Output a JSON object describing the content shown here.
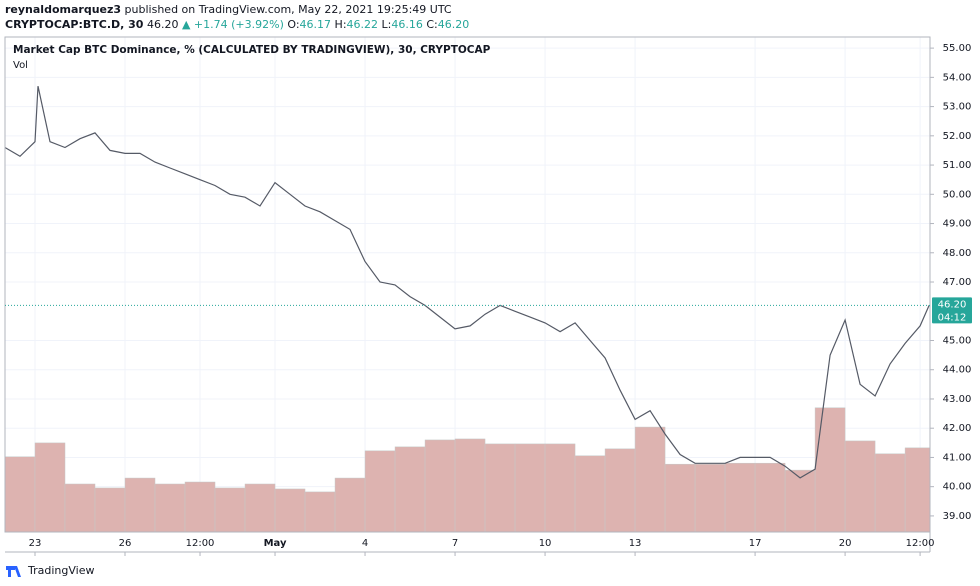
{
  "header": {
    "publisher": "reynaldomarquez3",
    "published": " published on TradingView.com, May 22, 2021 19:25:49 UTC",
    "symbol": "CRYPTOCAP:BTC.D, 30",
    "price": "46.20",
    "change": "▲ +1.74 (+3.92%)",
    "o_label": "O:",
    "o": "46.17",
    "h_label": "H:",
    "h": "46.22",
    "l_label": "L:",
    "l": "46.16",
    "c_label": "C:",
    "c": "46.20"
  },
  "footer": {
    "brand": "TradingView"
  },
  "chart_data": {
    "type": "line",
    "title": "Market Cap BTC Dominance, % (CALCULATED BY TRADINGVIEW), 30, CRYPTOCAP",
    "subtitle": "Vol",
    "series": [
      {
        "name": "BTC.D",
        "color": "#555a66",
        "x": [
          -1,
          -0.5,
          0,
          0.1,
          0.5,
          1,
          1.5,
          2,
          2.5,
          3,
          3.5,
          4,
          4.5,
          5,
          5.5,
          6,
          6.5,
          7,
          7.5,
          8,
          8.5,
          9,
          9.5,
          10,
          10.5,
          11,
          11.5,
          12,
          12.5,
          13,
          13.5,
          14,
          14.5,
          15,
          15.5,
          16,
          16.5,
          17,
          17.5,
          18,
          18.5,
          19,
          19.5,
          20,
          20.5,
          21,
          21.5,
          22,
          22.5,
          23,
          23.5,
          24,
          24.5,
          25,
          25.5,
          26,
          26.5,
          27,
          27.5,
          28,
          28.5,
          29,
          29.5,
          29.8
        ],
        "values": [
          51.6,
          51.3,
          51.8,
          53.7,
          51.8,
          51.6,
          51.9,
          52.1,
          51.5,
          51.4,
          51.4,
          51.1,
          50.9,
          50.7,
          50.5,
          50.3,
          50.0,
          49.9,
          49.6,
          50.4,
          50.0,
          49.6,
          49.4,
          49.1,
          48.8,
          47.7,
          47.0,
          46.9,
          46.5,
          46.2,
          45.8,
          45.4,
          45.5,
          45.9,
          46.2,
          46.0,
          45.8,
          45.6,
          45.3,
          45.6,
          45.0,
          44.4,
          43.3,
          42.3,
          42.6,
          41.8,
          41.1,
          40.8,
          40.8,
          40.8,
          41.0,
          41.0,
          41.0,
          40.7,
          40.3,
          40.6,
          44.5,
          45.7,
          43.5,
          43.1,
          44.2,
          44.9,
          45.5,
          46.2
        ]
      }
    ],
    "volume": {
      "name": "Vol",
      "color": "#ddb3b0",
      "x": [
        -1,
        0,
        1,
        2,
        3,
        4,
        5,
        6,
        7,
        8,
        9,
        10,
        11,
        12,
        13,
        14,
        15,
        16,
        17,
        18,
        19,
        20,
        21,
        22,
        23,
        24,
        25,
        26,
        27,
        28,
        29
      ],
      "values": [
        15.2,
        18,
        9.7,
        8.9,
        10.9,
        9.7,
        10.1,
        8.9,
        9.7,
        8.7,
        8.1,
        10.9,
        16.4,
        17.2,
        18.6,
        18.8,
        17.8,
        17.8,
        17.8,
        15.4,
        16.8,
        21.2,
        13.7,
        13.7,
        13.9,
        13.9,
        12.5,
        25.1,
        18.4,
        15.8,
        17
      ],
      "vlim": [
        0,
        100
      ]
    },
    "last_price": {
      "value": 46.2,
      "label": "46.20"
    },
    "countdown": "04:12",
    "last_color": "#26a69a",
    "xlim": [
      -1,
      29.83
    ],
    "xticks": [
      {
        "value": 0,
        "label": "23"
      },
      {
        "value": 3,
        "label": "26"
      },
      {
        "value": 5.5,
        "label": "12:00"
      },
      {
        "value": 8,
        "label": "May"
      },
      {
        "value": 11,
        "label": "4"
      },
      {
        "value": 14,
        "label": "7"
      },
      {
        "value": 17,
        "label": "10"
      },
      {
        "value": 20,
        "label": "13"
      },
      {
        "value": 24,
        "label": "17"
      },
      {
        "value": 27,
        "label": "20"
      },
      {
        "value": 29.5,
        "label": "12:00"
      }
    ],
    "ylim": [
      38.45,
      55.38
    ],
    "yticks": [
      {
        "value": 39,
        "label": "39.00"
      },
      {
        "value": 40,
        "label": "40.00"
      },
      {
        "value": 41,
        "label": "41.00"
      },
      {
        "value": 42,
        "label": "42.00"
      },
      {
        "value": 43,
        "label": "43.00"
      },
      {
        "value": 44,
        "label": "44.00"
      },
      {
        "value": 45,
        "label": "45.00"
      },
      {
        "value": 47,
        "label": "47.00"
      },
      {
        "value": 48,
        "label": "48.00"
      },
      {
        "value": 49,
        "label": "49.00"
      },
      {
        "value": 50,
        "label": "50.00"
      },
      {
        "value": 51,
        "label": "51.00"
      },
      {
        "value": 52,
        "label": "52.00"
      },
      {
        "value": 53,
        "label": "53.00"
      },
      {
        "value": 54,
        "label": "54.00"
      },
      {
        "value": 55,
        "label": "55.00"
      }
    ],
    "grid": true
  }
}
